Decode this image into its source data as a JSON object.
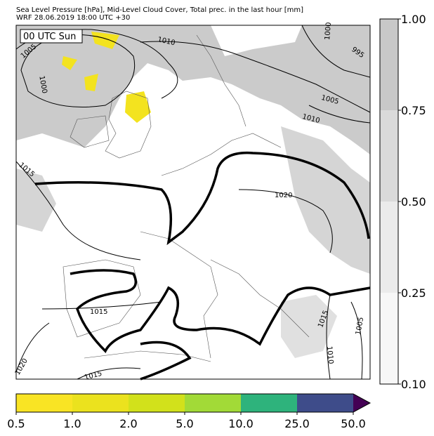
{
  "header": {
    "title": "Sea Level Pressure [hPa], Mid-Level Cloud Cover, Total prec. in the last hour [mm]",
    "subtitle": "WRF 28.06.2019 18:00 UTC +30"
  },
  "time_label": "00 UTC Sun",
  "contour_labels": [
    "1010",
    "1005",
    "1000",
    "995",
    "1000",
    "1005",
    "1010",
    "1015",
    "1020",
    "1015",
    "1015",
    "1020",
    "1015",
    "1005",
    "1010"
  ],
  "cloud_colorbar": {
    "colors": [
      "#c8c8c8",
      "#dadada",
      "#ebebeb",
      "#f7f7f7"
    ],
    "ticks": [
      {
        "value": 1,
        "label": "1.00"
      },
      {
        "value": 0.75,
        "label": "0.75"
      },
      {
        "value": 0.5,
        "label": "0.50"
      },
      {
        "value": 0.25,
        "label": "0.25"
      },
      {
        "value": 0.1,
        "label": "0.10"
      }
    ]
  },
  "precip_colorbar": {
    "colors": [
      "#f9e424",
      "#ebe21e",
      "#d2e11b",
      "#a2da37",
      "#2eb37c",
      "#3e4c8a"
    ],
    "extend_color": "#440154",
    "ticks": [
      {
        "value": 0.5,
        "label": "0.5"
      },
      {
        "value": 1,
        "label": "1.0"
      },
      {
        "value": 2,
        "label": "2.0"
      },
      {
        "value": 5,
        "label": "5.0"
      },
      {
        "value": 10,
        "label": "10.0"
      },
      {
        "value": 25,
        "label": "25.0"
      },
      {
        "value": 50,
        "label": "50.0"
      }
    ]
  }
}
